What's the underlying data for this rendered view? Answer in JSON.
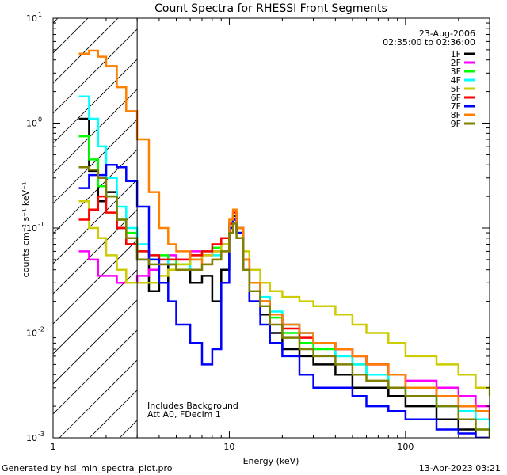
{
  "chart_data": {
    "type": "line",
    "title": "Count Spectra for RHESSI Front Segments",
    "xlabel": "Energy (keV)",
    "ylabel": "counts cm⁻² s⁻¹ keV⁻¹",
    "xscale": "log",
    "yscale": "log",
    "xlim": [
      1,
      300
    ],
    "ylim": [
      0.001,
      10
    ],
    "x_ticks": [
      {
        "value": 1,
        "label": "1"
      },
      {
        "value": 10,
        "label": "10"
      },
      {
        "value": 100,
        "label": "100"
      }
    ],
    "y_ticks": [
      {
        "value": 10,
        "label": "10",
        "exp": "1"
      },
      {
        "value": 1,
        "label": "10",
        "exp": "0"
      },
      {
        "value": 0.1,
        "label": "10",
        "exp": "-1"
      },
      {
        "value": 0.01,
        "label": "10",
        "exp": "-2"
      },
      {
        "value": 0.001,
        "label": "10",
        "exp": "-3"
      }
    ],
    "attenuator_cutoff_kev": 3,
    "date": "23-Aug-2006",
    "time_range": "02:35:00 to 02:36:00",
    "notes": [
      "Includes Background",
      "Att A0, FDecim 1"
    ],
    "series": [
      {
        "name": "1F",
        "color": "#000000",
        "x": [
          1.4,
          1.6,
          1.8,
          2.0,
          2.3,
          2.6,
          3.0,
          3.5,
          4,
          4.5,
          5,
          6,
          7,
          8,
          9,
          10,
          10.5,
          11,
          12,
          13,
          15,
          17,
          20,
          25,
          30,
          40,
          50,
          60,
          80,
          100,
          150,
          200,
          250,
          300
        ],
        "y": [
          1.1,
          0.35,
          0.18,
          0.22,
          0.1,
          0.07,
          0.05,
          0.025,
          0.03,
          0.045,
          0.04,
          0.03,
          0.035,
          0.02,
          0.04,
          0.1,
          0.13,
          0.1,
          0.04,
          0.02,
          0.015,
          0.01,
          0.007,
          0.006,
          0.005,
          0.004,
          0.003,
          0.003,
          0.0025,
          0.002,
          0.0015,
          0.0012,
          0.001,
          0.001
        ]
      },
      {
        "name": "2F",
        "color": "#ff00ff",
        "x": [
          1.4,
          1.6,
          1.8,
          2.0,
          2.3,
          2.6,
          3.0,
          3.5,
          4,
          4.5,
          5,
          6,
          7,
          8,
          9,
          10,
          10.5,
          11,
          12,
          13,
          15,
          17,
          20,
          25,
          30,
          40,
          50,
          60,
          80,
          100,
          150,
          200,
          250,
          300
        ],
        "y": [
          0.06,
          0.05,
          0.035,
          0.035,
          0.03,
          0.03,
          0.035,
          0.04,
          0.045,
          0.055,
          0.05,
          0.06,
          0.055,
          0.06,
          0.07,
          0.1,
          0.12,
          0.09,
          0.05,
          0.03,
          0.02,
          0.015,
          0.012,
          0.01,
          0.008,
          0.007,
          0.006,
          0.005,
          0.004,
          0.0035,
          0.003,
          0.0025,
          0.002,
          0.0015
        ]
      },
      {
        "name": "3F",
        "color": "#00ff00",
        "x": [
          1.4,
          1.6,
          1.8,
          2.0,
          2.3,
          2.6,
          3.0,
          3.5,
          4,
          4.5,
          5,
          6,
          7,
          8,
          9,
          10,
          10.5,
          11,
          12,
          13,
          15,
          17,
          20,
          25,
          30,
          40,
          50,
          60,
          80,
          100,
          150,
          200,
          250,
          300
        ],
        "y": [
          0.75,
          0.45,
          0.25,
          0.2,
          0.12,
          0.09,
          0.06,
          0.05,
          0.055,
          0.05,
          0.045,
          0.055,
          0.06,
          0.065,
          0.08,
          0.11,
          0.12,
          0.09,
          0.05,
          0.03,
          0.02,
          0.014,
          0.01,
          0.008,
          0.007,
          0.006,
          0.005,
          0.004,
          0.003,
          0.0025,
          0.002,
          0.0015,
          0.0012,
          0.001
        ]
      },
      {
        "name": "4F",
        "color": "#00ffff",
        "x": [
          1.4,
          1.6,
          1.8,
          2.0,
          2.3,
          2.6,
          3.0,
          3.5,
          4,
          4.5,
          5,
          6,
          7,
          8,
          9,
          10,
          10.5,
          11,
          12,
          13,
          15,
          17,
          20,
          25,
          30,
          40,
          50,
          60,
          80,
          100,
          150,
          200,
          250,
          300
        ],
        "y": [
          1.8,
          1.1,
          0.6,
          0.3,
          0.16,
          0.1,
          0.07,
          0.055,
          0.05,
          0.045,
          0.04,
          0.05,
          0.06,
          0.055,
          0.07,
          0.1,
          0.12,
          0.1,
          0.05,
          0.03,
          0.022,
          0.016,
          0.012,
          0.01,
          0.008,
          0.006,
          0.005,
          0.004,
          0.003,
          0.0025,
          0.002,
          0.0018,
          0.0015,
          0.0012
        ]
      },
      {
        "name": "5F",
        "color": "#cccc00",
        "x": [
          1.4,
          1.6,
          1.8,
          2.0,
          2.3,
          2.6,
          3.0,
          3.5,
          4,
          4.5,
          5,
          6,
          7,
          8,
          9,
          10,
          10.5,
          11,
          12,
          13,
          15,
          17,
          20,
          25,
          30,
          40,
          50,
          60,
          80,
          100,
          150,
          200,
          250,
          300
        ],
        "y": [
          0.18,
          0.1,
          0.08,
          0.055,
          0.04,
          0.03,
          0.03,
          0.03,
          0.035,
          0.04,
          0.045,
          0.05,
          0.055,
          0.06,
          0.07,
          0.09,
          0.11,
          0.09,
          0.06,
          0.04,
          0.03,
          0.025,
          0.022,
          0.02,
          0.018,
          0.015,
          0.012,
          0.01,
          0.008,
          0.006,
          0.005,
          0.004,
          0.003,
          0.0025
        ]
      },
      {
        "name": "6F",
        "color": "#ff0000",
        "x": [
          1.4,
          1.6,
          1.8,
          2.0,
          2.3,
          2.6,
          3.0,
          3.5,
          4,
          4.5,
          5,
          6,
          7,
          8,
          9,
          10,
          10.5,
          11,
          12,
          13,
          15,
          17,
          20,
          25,
          30,
          40,
          50,
          60,
          80,
          100,
          150,
          200,
          250,
          300
        ],
        "y": [
          0.12,
          0.15,
          0.2,
          0.14,
          0.1,
          0.07,
          0.06,
          0.055,
          0.05,
          0.05,
          0.05,
          0.055,
          0.06,
          0.07,
          0.08,
          0.11,
          0.14,
          0.1,
          0.05,
          0.03,
          0.02,
          0.015,
          0.011,
          0.009,
          0.008,
          0.007,
          0.006,
          0.005,
          0.004,
          0.003,
          0.0025,
          0.002,
          0.0018,
          0.0015
        ]
      },
      {
        "name": "7F",
        "color": "#0000ff",
        "x": [
          1.4,
          1.6,
          1.8,
          2.0,
          2.3,
          2.6,
          3.0,
          3.5,
          4,
          4.5,
          5,
          6,
          7,
          8,
          9,
          10,
          10.5,
          11,
          12,
          13,
          15,
          17,
          20,
          25,
          30,
          40,
          50,
          60,
          80,
          100,
          150,
          200,
          250,
          300
        ],
        "y": [
          0.24,
          0.32,
          0.32,
          0.4,
          0.38,
          0.28,
          0.16,
          0.05,
          0.03,
          0.02,
          0.012,
          0.008,
          0.005,
          0.007,
          0.03,
          0.1,
          0.12,
          0.09,
          0.04,
          0.02,
          0.012,
          0.008,
          0.006,
          0.004,
          0.003,
          0.003,
          0.0025,
          0.002,
          0.0018,
          0.0015,
          0.0012,
          0.0011,
          0.001,
          0.001
        ]
      },
      {
        "name": "8F",
        "color": "#ff8000",
        "x": [
          1.4,
          1.6,
          1.8,
          2.0,
          2.3,
          2.6,
          3.0,
          3.5,
          4,
          4.5,
          5,
          6,
          7,
          8,
          9,
          10,
          10.5,
          11,
          12,
          13,
          15,
          17,
          20,
          25,
          30,
          40,
          50,
          60,
          80,
          100,
          150,
          200,
          250,
          300
        ],
        "y": [
          4.6,
          4.9,
          4.3,
          3.5,
          2.2,
          1.3,
          0.7,
          0.22,
          0.1,
          0.07,
          0.06,
          0.05,
          0.045,
          0.05,
          0.06,
          0.12,
          0.15,
          0.1,
          0.05,
          0.03,
          0.02,
          0.015,
          0.012,
          0.01,
          0.008,
          0.007,
          0.006,
          0.005,
          0.004,
          0.003,
          0.0025,
          0.002,
          0.0018,
          0.0015
        ]
      },
      {
        "name": "9F",
        "color": "#808000",
        "x": [
          1.4,
          1.6,
          1.8,
          2.0,
          2.3,
          2.6,
          3.0,
          3.5,
          4,
          4.5,
          5,
          6,
          7,
          8,
          9,
          10,
          10.5,
          11,
          12,
          13,
          15,
          17,
          20,
          25,
          30,
          40,
          50,
          60,
          80,
          100,
          150,
          200,
          250,
          300
        ],
        "y": [
          0.38,
          0.36,
          0.3,
          0.2,
          0.12,
          0.08,
          0.05,
          0.045,
          0.045,
          0.045,
          0.04,
          0.04,
          0.045,
          0.05,
          0.06,
          0.09,
          0.11,
          0.08,
          0.04,
          0.025,
          0.018,
          0.012,
          0.009,
          0.007,
          0.006,
          0.005,
          0.004,
          0.0035,
          0.003,
          0.0025,
          0.002,
          0.0015,
          0.0012,
          0.001
        ]
      }
    ]
  },
  "footer": {
    "generator": "Generated by hsi_min_spectra_plot.pro",
    "timestamp": "13-Apr-2023 03:21"
  }
}
